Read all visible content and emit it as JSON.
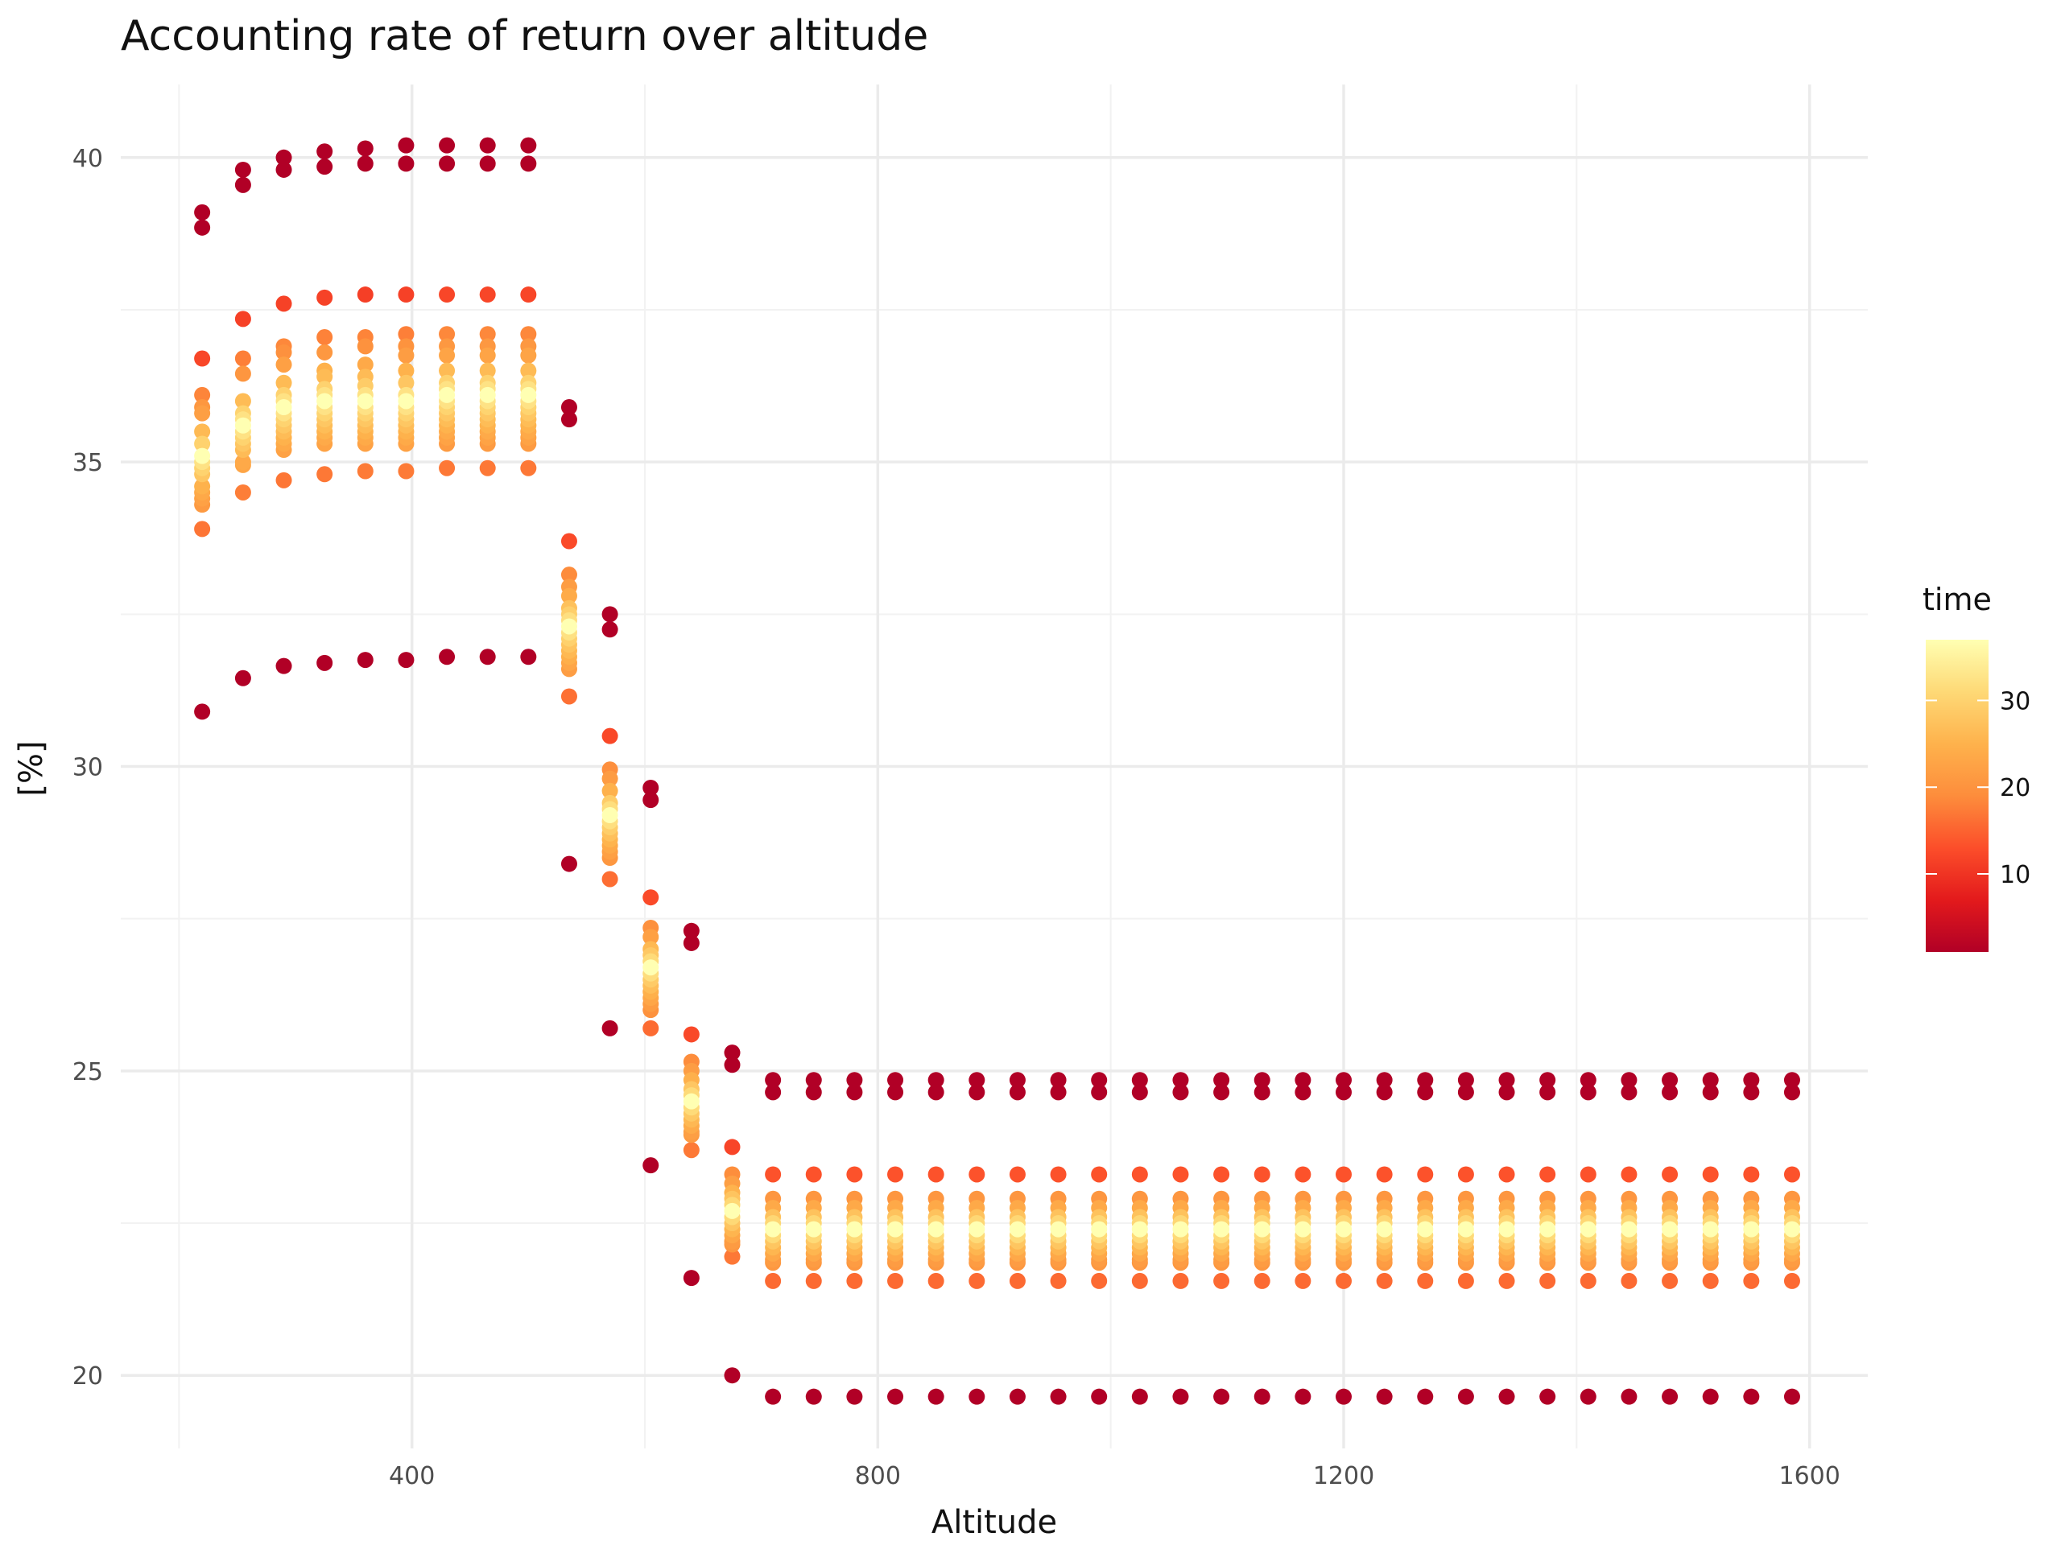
{
  "chart_data": {
    "type": "scatter",
    "title": "Accounting rate of return over altitude",
    "xlabel": "Altitude",
    "ylabel": "[%]",
    "xlim": [
      150,
      1650
    ],
    "ylim": [
      18.8,
      41.2
    ],
    "x_ticks": [
      400,
      800,
      1200,
      1600
    ],
    "x_minor_ticks": [
      200,
      600,
      1000,
      1400
    ],
    "y_ticks": [
      20,
      25,
      30,
      35,
      40
    ],
    "y_minor_ticks": [
      22.5,
      27.5,
      32.5,
      37.5
    ],
    "grid": true,
    "legend": {
      "title": "time",
      "placement": "right",
      "type": "colorbar",
      "range": [
        1,
        37
      ],
      "ticks": [
        10,
        20,
        30
      ],
      "colors": [
        "#b10026",
        "#e31a1c",
        "#fc4e2a",
        "#fd8d3c",
        "#feb24c",
        "#fed976",
        "#ffffb2"
      ]
    },
    "point_color_low": "#bd0026",
    "point_color_high": "#ffffcc",
    "altitudes": [
      219.9,
      255,
      290,
      325,
      360,
      395,
      430,
      465,
      500,
      535,
      570,
      605,
      640,
      675,
      710,
      745,
      780,
      815,
      850,
      885,
      920,
      955,
      990,
      1025,
      1060,
      1095,
      1130,
      1165,
      1200,
      1235,
      1270,
      1305,
      1340,
      1375,
      1410,
      1445,
      1480,
      1515,
      1550,
      1585
    ],
    "columns": [
      {
        "x": 219.9,
        "values": [
          39.1,
          38.85,
          36.7,
          36.1,
          35.8,
          35.9,
          35.5,
          35.3,
          35.1,
          35.0,
          34.9,
          34.8,
          34.6,
          34.5,
          34.4,
          34.3,
          33.9,
          30.9
        ]
      },
      {
        "x": 255,
        "values": [
          39.8,
          39.55,
          37.35,
          36.7,
          36.45,
          36.0,
          35.8,
          35.7,
          35.6,
          35.5,
          35.4,
          35.3,
          35.2,
          35.0,
          34.95,
          34.5,
          31.45
        ]
      },
      {
        "x": 290,
        "values": [
          40.0,
          39.8,
          37.6,
          36.9,
          36.8,
          36.6,
          36.3,
          36.1,
          36.0,
          35.9,
          35.8,
          35.7,
          35.6,
          35.5,
          35.4,
          35.3,
          35.2,
          34.7,
          31.65
        ]
      },
      {
        "x": 325,
        "values": [
          40.1,
          39.85,
          37.7,
          37.05,
          36.8,
          36.5,
          36.4,
          36.2,
          36.1,
          36.0,
          35.9,
          35.8,
          35.7,
          35.6,
          35.5,
          35.4,
          35.3,
          34.8,
          31.7
        ]
      },
      {
        "x": 360,
        "values": [
          40.15,
          39.9,
          37.75,
          37.05,
          36.9,
          36.6,
          36.4,
          36.25,
          36.1,
          36.0,
          35.9,
          35.8,
          35.7,
          35.6,
          35.5,
          35.4,
          35.3,
          34.85,
          31.75
        ]
      },
      {
        "x": 395,
        "values": [
          40.2,
          39.9,
          37.75,
          37.1,
          36.9,
          36.75,
          36.5,
          36.3,
          36.1,
          36.0,
          35.9,
          35.8,
          35.7,
          35.6,
          35.5,
          35.4,
          35.3,
          34.85,
          31.75
        ]
      },
      {
        "x": 430,
        "values": [
          40.2,
          39.9,
          37.75,
          37.1,
          36.9,
          36.75,
          36.5,
          36.3,
          36.2,
          36.1,
          36.0,
          35.9,
          35.8,
          35.7,
          35.6,
          35.5,
          35.4,
          35.3,
          34.9,
          31.8
        ]
      },
      {
        "x": 465,
        "values": [
          40.2,
          39.9,
          37.75,
          37.1,
          36.9,
          36.75,
          36.5,
          36.3,
          36.2,
          36.1,
          36.0,
          35.9,
          35.8,
          35.7,
          35.6,
          35.5,
          35.4,
          35.3,
          34.9,
          31.8
        ]
      },
      {
        "x": 500,
        "values": [
          40.2,
          39.9,
          37.75,
          37.1,
          36.9,
          36.75,
          36.5,
          36.3,
          36.2,
          36.1,
          36.0,
          35.9,
          35.8,
          35.7,
          35.6,
          35.5,
          35.4,
          35.3,
          34.9,
          31.8
        ]
      },
      {
        "x": 535,
        "values": [
          35.9,
          35.7,
          33.7,
          33.15,
          32.95,
          32.8,
          32.6,
          32.5,
          32.4,
          32.3,
          32.2,
          32.1,
          32.0,
          31.9,
          31.8,
          31.7,
          31.6,
          31.15,
          28.4
        ]
      },
      {
        "x": 570,
        "values": [
          32.5,
          32.25,
          30.5,
          29.95,
          29.8,
          29.6,
          29.4,
          29.3,
          29.2,
          29.1,
          29.0,
          28.9,
          28.8,
          28.7,
          28.6,
          28.5,
          28.15,
          25.7
        ]
      },
      {
        "x": 605,
        "values": [
          29.65,
          29.45,
          27.85,
          27.35,
          27.2,
          27.0,
          26.9,
          26.8,
          26.7,
          26.6,
          26.5,
          26.4,
          26.3,
          26.2,
          26.1,
          26.0,
          25.7,
          23.45
        ]
      },
      {
        "x": 640,
        "values": [
          27.3,
          27.1,
          25.6,
          25.15,
          25.0,
          24.85,
          24.7,
          24.6,
          24.5,
          24.4,
          24.3,
          24.2,
          24.1,
          24.0,
          23.95,
          23.7,
          21.6
        ]
      },
      {
        "x": 675,
        "values": [
          25.3,
          25.1,
          23.75,
          23.3,
          23.15,
          23.0,
          22.9,
          22.8,
          22.7,
          22.6,
          22.5,
          22.4,
          22.3,
          22.2,
          22.15,
          21.95,
          20.0
        ]
      },
      {
        "x": 710,
        "values": [
          24.85,
          24.65,
          23.3,
          22.9,
          22.75,
          22.6,
          22.5,
          22.4,
          22.3,
          22.2,
          22.1,
          22.0,
          21.9,
          21.85,
          21.55,
          19.65
        ]
      },
      {
        "x": 745,
        "values": [
          24.85,
          24.65,
          23.3,
          22.9,
          22.75,
          22.6,
          22.5,
          22.4,
          22.3,
          22.2,
          22.1,
          22.0,
          21.9,
          21.85,
          21.55,
          19.65
        ]
      },
      {
        "x": 780,
        "values": [
          24.85,
          24.65,
          23.3,
          22.9,
          22.75,
          22.6,
          22.5,
          22.4,
          22.3,
          22.2,
          22.1,
          22.0,
          21.9,
          21.85,
          21.55,
          19.65
        ]
      },
      {
        "x": 815,
        "values": [
          24.85,
          24.65,
          23.3,
          22.9,
          22.75,
          22.6,
          22.5,
          22.4,
          22.3,
          22.2,
          22.1,
          22.0,
          21.9,
          21.85,
          21.55,
          19.65
        ]
      },
      {
        "x": 850,
        "values": [
          24.85,
          24.65,
          23.3,
          22.9,
          22.75,
          22.6,
          22.5,
          22.4,
          22.3,
          22.2,
          22.1,
          22.0,
          21.9,
          21.85,
          21.55,
          19.65
        ]
      },
      {
        "x": 885,
        "values": [
          24.85,
          24.65,
          23.3,
          22.9,
          22.75,
          22.6,
          22.5,
          22.4,
          22.3,
          22.2,
          22.1,
          22.0,
          21.9,
          21.85,
          21.55,
          19.65
        ]
      },
      {
        "x": 920,
        "values": [
          24.85,
          24.65,
          23.3,
          22.9,
          22.75,
          22.6,
          22.5,
          22.4,
          22.3,
          22.2,
          22.1,
          22.0,
          21.9,
          21.85,
          21.55,
          19.65
        ]
      },
      {
        "x": 955,
        "values": [
          24.85,
          24.65,
          23.3,
          22.9,
          22.75,
          22.6,
          22.5,
          22.4,
          22.3,
          22.2,
          22.1,
          22.0,
          21.9,
          21.85,
          21.55,
          19.65
        ]
      },
      {
        "x": 990,
        "values": [
          24.85,
          24.65,
          23.3,
          22.9,
          22.75,
          22.6,
          22.5,
          22.4,
          22.3,
          22.2,
          22.1,
          22.0,
          21.9,
          21.85,
          21.55,
          19.65
        ]
      },
      {
        "x": 1025,
        "values": [
          24.85,
          24.65,
          23.3,
          22.9,
          22.75,
          22.6,
          22.5,
          22.4,
          22.3,
          22.2,
          22.1,
          22.0,
          21.9,
          21.85,
          21.55,
          19.65
        ]
      },
      {
        "x": 1060,
        "values": [
          24.85,
          24.65,
          23.3,
          22.9,
          22.75,
          22.6,
          22.5,
          22.4,
          22.3,
          22.2,
          22.1,
          22.0,
          21.9,
          21.85,
          21.55,
          19.65
        ]
      },
      {
        "x": 1095,
        "values": [
          24.85,
          24.65,
          23.3,
          22.9,
          22.75,
          22.6,
          22.5,
          22.4,
          22.3,
          22.2,
          22.1,
          22.0,
          21.9,
          21.85,
          21.55,
          19.65
        ]
      },
      {
        "x": 1130,
        "values": [
          24.85,
          24.65,
          23.3,
          22.9,
          22.75,
          22.6,
          22.5,
          22.4,
          22.3,
          22.2,
          22.1,
          22.0,
          21.9,
          21.85,
          21.55,
          19.65
        ]
      },
      {
        "x": 1165,
        "values": [
          24.85,
          24.65,
          23.3,
          22.9,
          22.75,
          22.6,
          22.5,
          22.4,
          22.3,
          22.2,
          22.1,
          22.0,
          21.9,
          21.85,
          21.55,
          19.65
        ]
      },
      {
        "x": 1200,
        "values": [
          24.85,
          24.65,
          23.3,
          22.9,
          22.75,
          22.6,
          22.5,
          22.4,
          22.3,
          22.2,
          22.1,
          22.0,
          21.9,
          21.85,
          21.55,
          19.65
        ]
      },
      {
        "x": 1235,
        "values": [
          24.85,
          24.65,
          23.3,
          22.9,
          22.75,
          22.6,
          22.5,
          22.4,
          22.3,
          22.2,
          22.1,
          22.0,
          21.9,
          21.85,
          21.55,
          19.65
        ]
      },
      {
        "x": 1270,
        "values": [
          24.85,
          24.65,
          23.3,
          22.9,
          22.75,
          22.6,
          22.5,
          22.4,
          22.3,
          22.2,
          22.1,
          22.0,
          21.9,
          21.85,
          21.55,
          19.65
        ]
      },
      {
        "x": 1305,
        "values": [
          24.85,
          24.65,
          23.3,
          22.9,
          22.75,
          22.6,
          22.5,
          22.4,
          22.3,
          22.2,
          22.1,
          22.0,
          21.9,
          21.85,
          21.55,
          19.65
        ]
      },
      {
        "x": 1340,
        "values": [
          24.85,
          24.65,
          23.3,
          22.9,
          22.75,
          22.6,
          22.5,
          22.4,
          22.3,
          22.2,
          22.1,
          22.0,
          21.9,
          21.85,
          21.55,
          19.65
        ]
      },
      {
        "x": 1375,
        "values": [
          24.85,
          24.65,
          23.3,
          22.9,
          22.75,
          22.6,
          22.5,
          22.4,
          22.3,
          22.2,
          22.1,
          22.0,
          21.9,
          21.85,
          21.55,
          19.65
        ]
      },
      {
        "x": 1410,
        "values": [
          24.85,
          24.65,
          23.3,
          22.9,
          22.75,
          22.6,
          22.5,
          22.4,
          22.3,
          22.2,
          22.1,
          22.0,
          21.9,
          21.85,
          21.55,
          19.65
        ]
      },
      {
        "x": 1445,
        "values": [
          24.85,
          24.65,
          23.3,
          22.9,
          22.75,
          22.6,
          22.5,
          22.4,
          22.3,
          22.2,
          22.1,
          22.0,
          21.9,
          21.85,
          21.55,
          19.65
        ]
      },
      {
        "x": 1480,
        "values": [
          24.85,
          24.65,
          23.3,
          22.9,
          22.75,
          22.6,
          22.5,
          22.4,
          22.3,
          22.2,
          22.1,
          22.0,
          21.9,
          21.85,
          21.55,
          19.65
        ]
      },
      {
        "x": 1515,
        "values": [
          24.85,
          24.65,
          23.3,
          22.9,
          22.75,
          22.6,
          22.5,
          22.4,
          22.3,
          22.2,
          22.1,
          22.0,
          21.9,
          21.85,
          21.55,
          19.65
        ]
      },
      {
        "x": 1550,
        "values": [
          24.85,
          24.65,
          23.3,
          22.9,
          22.75,
          22.6,
          22.5,
          22.4,
          22.3,
          22.2,
          22.1,
          22.0,
          21.9,
          21.85,
          21.55,
          19.65
        ]
      },
      {
        "x": 1585,
        "values": [
          24.85,
          24.65,
          23.3,
          22.9,
          22.75,
          22.6,
          22.5,
          22.4,
          22.3,
          22.2,
          22.1,
          22.0,
          21.9,
          21.85,
          21.55,
          19.65
        ]
      }
    ]
  }
}
